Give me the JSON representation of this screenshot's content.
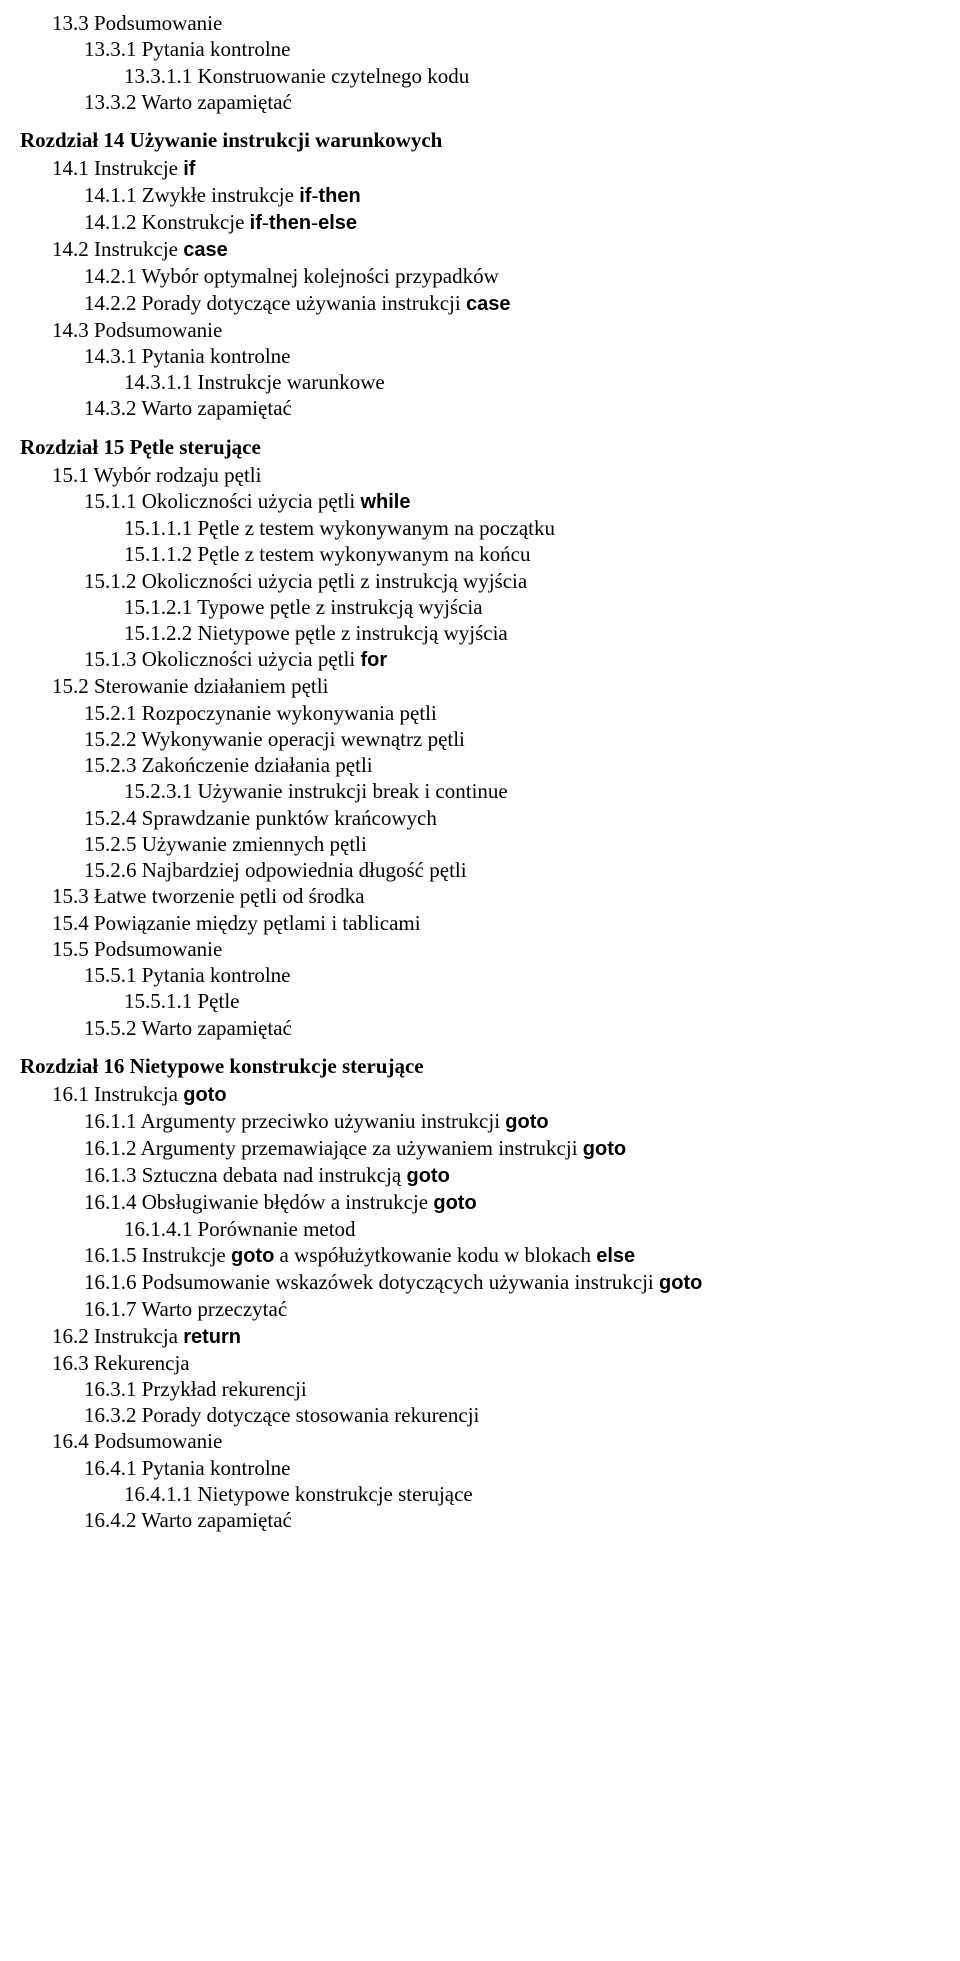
{
  "lines": [
    {
      "cls": "l0 line",
      "text": "13.3  Podsumowanie"
    },
    {
      "cls": "l1 line",
      "text": "13.3.1  Pytania kontrolne"
    },
    {
      "cls": "l2 line",
      "text": "13.3.1.1 Konstruowanie czytelnego kodu"
    },
    {
      "cls": "l1 line",
      "text": "13.3.2  Warto zapamiętać"
    },
    {
      "cls": "chapter line",
      "text": "Rozdział 14 Używanie instrukcji warunkowych"
    },
    {
      "cls": "l0 line",
      "html": "14.1  Instrukcje <span class=\"kw\">if</span>"
    },
    {
      "cls": "l1 line",
      "html": "14.1.1  Zwykłe instrukcje <span class=\"kw\">if</span>-<span class=\"kw\">then</span>"
    },
    {
      "cls": "l1 line",
      "html": "14.1.2  Konstrukcje <span class=\"kw\">if</span>-<span class=\"kw\">then</span>-<span class=\"kw\">else</span>"
    },
    {
      "cls": "l0 line",
      "html": "14.2  Instrukcje <span class=\"kw\">case</span>"
    },
    {
      "cls": "l1 line",
      "text": "14.2.1  Wybór optymalnej kolejności przypadków"
    },
    {
      "cls": "l1 line",
      "html": "14.2.2  Porady dotyczące używania instrukcji <span class=\"kw\">case</span>"
    },
    {
      "cls": "l0 line",
      "text": "14.3  Podsumowanie"
    },
    {
      "cls": "l1 line",
      "text": "14.3.1  Pytania kontrolne"
    },
    {
      "cls": "l2 line",
      "text": "14.3.1.1 Instrukcje warunkowe"
    },
    {
      "cls": "l1 line",
      "text": "14.3.2  Warto zapamiętać"
    },
    {
      "cls": "chapter line",
      "text": "Rozdział 15 Pętle sterujące"
    },
    {
      "cls": "l0 line",
      "text": "15.1  Wybór rodzaju pętli"
    },
    {
      "cls": "l1 line",
      "html": "15.1.1  Okoliczności użycia pętli <span class=\"kw\">while</span>"
    },
    {
      "cls": "l2 line",
      "text": "15.1.1.1 Pętle z testem wykonywanym na początku"
    },
    {
      "cls": "l2 line",
      "text": "15.1.1.2 Pętle z testem wykonywanym na końcu"
    },
    {
      "cls": "l1 line",
      "text": "15.1.2  Okoliczności użycia pętli z instrukcją wyjścia"
    },
    {
      "cls": "l2 line",
      "text": "15.1.2.1 Typowe pętle z instrukcją wyjścia"
    },
    {
      "cls": "l2 line",
      "text": "15.1.2.2 Nietypowe pętle z instrukcją wyjścia"
    },
    {
      "cls": "l1 line",
      "html": "15.1.3  Okoliczności użycia pętli <span class=\"kw\">for</span>"
    },
    {
      "cls": "l0 line",
      "text": "15.2  Sterowanie działaniem pętli"
    },
    {
      "cls": "l1 line",
      "text": "15.2.1  Rozpoczynanie wykonywania pętli"
    },
    {
      "cls": "l1 line",
      "text": "15.2.2  Wykonywanie operacji wewnątrz pętli"
    },
    {
      "cls": "l1 line",
      "text": "15.2.3  Zakończenie działania pętli"
    },
    {
      "cls": "l2 line",
      "text": "15.2.3.1 Używanie instrukcji break i continue"
    },
    {
      "cls": "l1 line",
      "text": "15.2.4  Sprawdzanie punktów krańcowych"
    },
    {
      "cls": "l1 line",
      "text": "15.2.5  Używanie zmiennych pętli"
    },
    {
      "cls": "l1 line",
      "text": "15.2.6  Najbardziej odpowiednia długość pętli"
    },
    {
      "cls": "l0 line",
      "text": "15.3  Łatwe tworzenie pętli od środka"
    },
    {
      "cls": "l0 line",
      "text": "15.4  Powiązanie między pętlami i tablicami"
    },
    {
      "cls": "l0 line",
      "text": "15.5  Podsumowanie"
    },
    {
      "cls": "l1 line",
      "text": "15.5.1  Pytania kontrolne"
    },
    {
      "cls": "l2 line",
      "text": "15.5.1.1 Pętle"
    },
    {
      "cls": "l1 line",
      "text": "15.5.2  Warto zapamiętać"
    },
    {
      "cls": "chapter line",
      "text": "Rozdział 16 Nietypowe konstrukcje sterujące"
    },
    {
      "cls": "l0 line",
      "html": "16.1  Instrukcja <span class=\"kw\">goto</span>"
    },
    {
      "cls": "l1 line",
      "html": "16.1.1  Argumenty przeciwko używaniu instrukcji <span class=\"kw\">goto</span>"
    },
    {
      "cls": "l1 line",
      "html": "16.1.2  Argumenty przemawiające za używaniem instrukcji <span class=\"kw\">goto</span>"
    },
    {
      "cls": "l1 line",
      "html": "16.1.3  Sztuczna debata nad instrukcją <span class=\"kw\">goto</span>"
    },
    {
      "cls": "l1 line",
      "html": "16.1.4  Obsługiwanie błędów a instrukcje <span class=\"kw\">goto</span>"
    },
    {
      "cls": "l2 line",
      "text": "16.1.4.1 Porównanie metod"
    },
    {
      "cls": "l1 line",
      "html": "16.1.5  Instrukcje <span class=\"kw\">goto</span> a współużytkowanie kodu w blokach <span class=\"kw\">else</span>"
    },
    {
      "cls": "l1 line",
      "html": "16.1.6  Podsumowanie wskazówek dotyczących używania instrukcji <span class=\"kw\">goto</span>"
    },
    {
      "cls": "l1 line",
      "text": "16.1.7  Warto przeczytać"
    },
    {
      "cls": "l0 line",
      "html": "16.2  Instrukcja <span class=\"kw\">return</span>"
    },
    {
      "cls": "l0 line",
      "text": "16.3  Rekurencja"
    },
    {
      "cls": "l1 line",
      "text": "16.3.1  Przykład rekurencji"
    },
    {
      "cls": "l1 line",
      "text": "16.3.2  Porady dotyczące stosowania rekurencji"
    },
    {
      "cls": "l0 line",
      "text": "16.4  Podsumowanie"
    },
    {
      "cls": "l1 line",
      "text": "16.4.1  Pytania kontrolne"
    },
    {
      "cls": "l2 line",
      "text": "16.4.1.1 Nietypowe konstrukcje sterujące"
    },
    {
      "cls": "l1 line",
      "text": "16.4.2  Warto zapamiętać"
    }
  ]
}
